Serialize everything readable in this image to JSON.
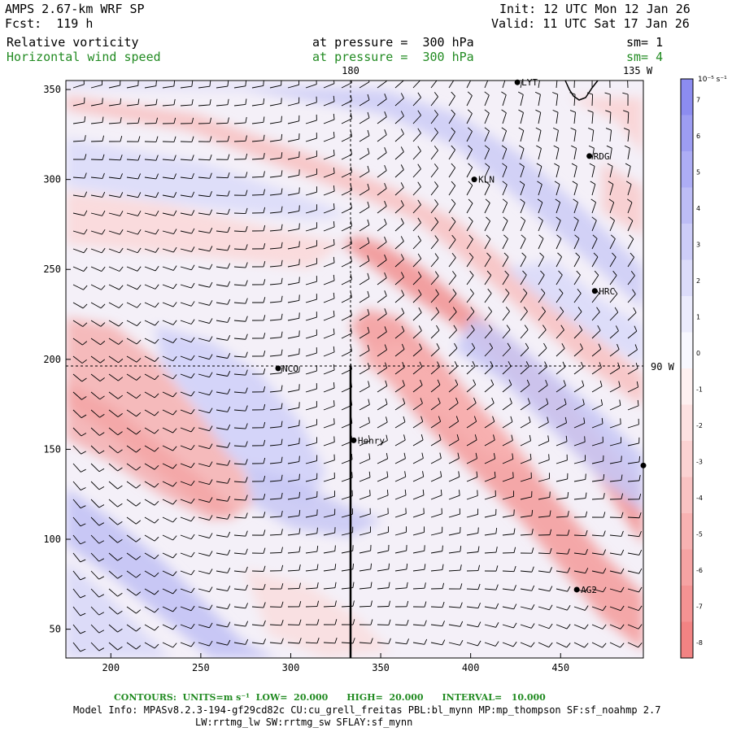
{
  "header": {
    "model": "AMPS 2.67-km WRF SP",
    "forecast": "Fcst:  119 h",
    "init": "Init: 12 UTC Mon 12 Jan 26",
    "valid": "Valid: 11 UTC Sat 17 Jan 26",
    "field1": "Relative vorticity",
    "field1_level": "at pressure =  300 hPa",
    "field1_sm": "sm= 1",
    "field2": "Horizontal wind speed",
    "field2_level": "at pressure =  300 hPa",
    "field2_sm": "sm= 4"
  },
  "map": {
    "x_ticks": [
      "200",
      "250",
      "300",
      "350",
      "400",
      "450"
    ],
    "y_ticks": [
      "50",
      "100",
      "150",
      "200",
      "250",
      "300",
      "350"
    ],
    "lon_label_top_180": "180",
    "lon_label_top_135": "135 W",
    "lon_label_right_90": "90 W",
    "stations": [
      {
        "name": "NCO",
        "x": 293,
        "y": 195
      },
      {
        "name": "Henry",
        "x": 335,
        "y": 155
      },
      {
        "name": "KLN",
        "x": 402,
        "y": 300
      },
      {
        "name": "RDG",
        "x": 466,
        "y": 313
      },
      {
        "name": "HRC",
        "x": 469,
        "y": 238
      },
      {
        "name": "AG2",
        "x": 459,
        "y": 72
      },
      {
        "name": "LYT",
        "x": 426,
        "y": 354
      },
      {
        "name": "",
        "x": 496,
        "y": 141
      }
    ]
  },
  "colorbar": {
    "units": "10⁻⁵ s⁻¹",
    "labels": [
      "7",
      "6",
      "5",
      "4",
      "3",
      "2",
      "1",
      "0",
      "-1",
      "-2",
      "-3",
      "-4",
      "-5",
      "-6",
      "-7",
      "-8"
    ],
    "colors": [
      "#8c8cf0",
      "#9d9df2",
      "#adadf5",
      "#bdbdf6",
      "#cdcdf8",
      "#dcdcfa",
      "#ebebfc",
      "#f7f7fe",
      "#fef0f0",
      "#fde1e1",
      "#fbd2d2",
      "#f9c2c2",
      "#f8b2b2",
      "#f6a3a3",
      "#f49393",
      "#f28383"
    ]
  },
  "footer": {
    "contours": "CONTOURS:  UNITS=m s⁻¹  LOW=  20.000      HIGH=  20.000      INTERVAL=   10.000",
    "model_info": "Model Info: MPASv8.2.3-194-gf29cd82c CU:cu_grell_freitas PBL:bl_mynn MP:mp_thompson SF:sf_noahmp 2.7",
    "model_info2": "LW:rrtmg_lw SW:rrtmg_sw SFLAY:sf_mynn"
  }
}
